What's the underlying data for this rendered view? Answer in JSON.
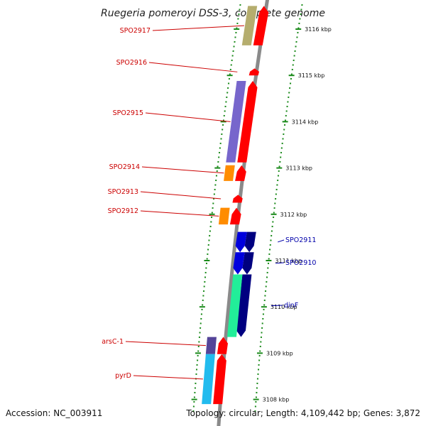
{
  "title": "Ruegeria pomeroyi DSS-3, complete genome",
  "footer": {
    "accession": "Accession: NC_003911",
    "topology": "Topology: circular; Length: 4,109,442 bp; Genes: 3,872"
  },
  "colors": {
    "backbone": "#8a8a8a",
    "ruler": "#1a8a1a",
    "label_left": "#cc0000",
    "label_right": "#0000aa",
    "cds_left": "#ff0000",
    "cds_right": "#000080"
  },
  "ticks": [
    {
      "label": "3116 kbp",
      "kbp": 3116
    },
    {
      "label": "3115 kbp",
      "kbp": 3115
    },
    {
      "label": "3114 kbp",
      "kbp": 3114
    },
    {
      "label": "3113 kbp",
      "kbp": 3113
    },
    {
      "label": "3112 kbp",
      "kbp": 3112
    },
    {
      "label": "3111 kbp",
      "kbp": 3111
    },
    {
      "label": "3110 kbp",
      "kbp": 3110
    },
    {
      "label": "3109 kbp",
      "kbp": 3109
    },
    {
      "label": "3108 kbp",
      "kbp": 3108
    }
  ],
  "genes_left": [
    {
      "label": "SPO2917",
      "start": 3115.65,
      "end": 3116.5,
      "cog": "#b5ad6e"
    },
    {
      "label": "SPO2916",
      "start": 3115.0,
      "end": 3115.15,
      "cog": null
    },
    {
      "label": "SPO2915",
      "start": 3113.12,
      "end": 3114.88,
      "cog": "#7766cc"
    },
    {
      "label": "SPO2914",
      "start": 3112.72,
      "end": 3113.06,
      "cog": "#ff8c00"
    },
    {
      "label": "SPO2913",
      "start": 3112.25,
      "end": 3112.42,
      "cog": null
    },
    {
      "label": "SPO2912",
      "start": 3111.78,
      "end": 3112.14,
      "cog": "#ff8c00"
    },
    {
      "label": "arsC-1",
      "start": 3108.98,
      "end": 3109.35,
      "cog": "#554499"
    },
    {
      "label": "pyrD",
      "start": 3107.9,
      "end": 3108.98,
      "cog": "#22bbee"
    }
  ],
  "genes_right": [
    {
      "label": "SPO2911",
      "start": 3111.18,
      "end": 3111.62,
      "cog": "#0000dd"
    },
    {
      "label": "SPO2910",
      "start": 3110.7,
      "end": 3111.18,
      "cog": "#0000dd"
    },
    {
      "label": "dinF",
      "start": 3109.35,
      "end": 3110.7,
      "cog": "#22ee99"
    }
  ]
}
